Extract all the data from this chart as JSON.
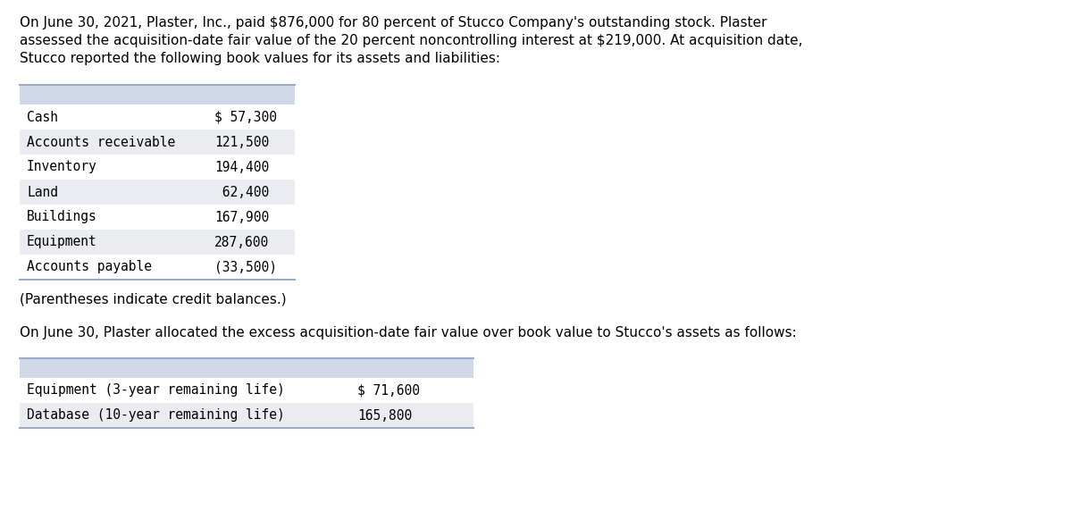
{
  "intro_text": "On June 30, 2021, Plaster, Inc., paid $876,000 for 80 percent of Stucco Company's outstanding stock. Plaster\nassessed the acquisition-date fair value of the 20 percent noncontrolling interest at $219,000. At acquisition date,\nStucco reported the following book values for its assets and liabilities:",
  "table1_header_color": "#d0d8e8",
  "table1_rows": [
    [
      "Cash",
      "$ 57,300"
    ],
    [
      "Accounts receivable",
      "121,500"
    ],
    [
      "Inventory",
      "194,400"
    ],
    [
      "Land",
      " 62,400"
    ],
    [
      "Buildings",
      "167,900"
    ],
    [
      "Equipment",
      "287,600"
    ],
    [
      "Accounts payable",
      "(33,500)"
    ]
  ],
  "table1_alt_colors": [
    "#ffffff",
    "#eaecf2",
    "#ffffff",
    "#eaecf2",
    "#ffffff",
    "#eaecf2",
    "#ffffff"
  ],
  "footnote": "(Parentheses indicate credit balances.)",
  "middle_text": "On June 30, Plaster allocated the excess acquisition-date fair value over book value to Stucco's assets as follows:",
  "table2_header_color": "#d0d8e8",
  "table2_rows": [
    [
      "Equipment (3-year remaining life)",
      "$ 71,600"
    ],
    [
      "Database (10-year remaining life)",
      "165,800"
    ]
  ],
  "table2_alt_colors": [
    "#ffffff",
    "#eaecf2"
  ],
  "bg_color": "#ffffff",
  "border_color": "#9aabcc",
  "text_color": "#000000",
  "mono_font": "DejaVu Sans Mono",
  "body_font": "DejaVu Sans"
}
